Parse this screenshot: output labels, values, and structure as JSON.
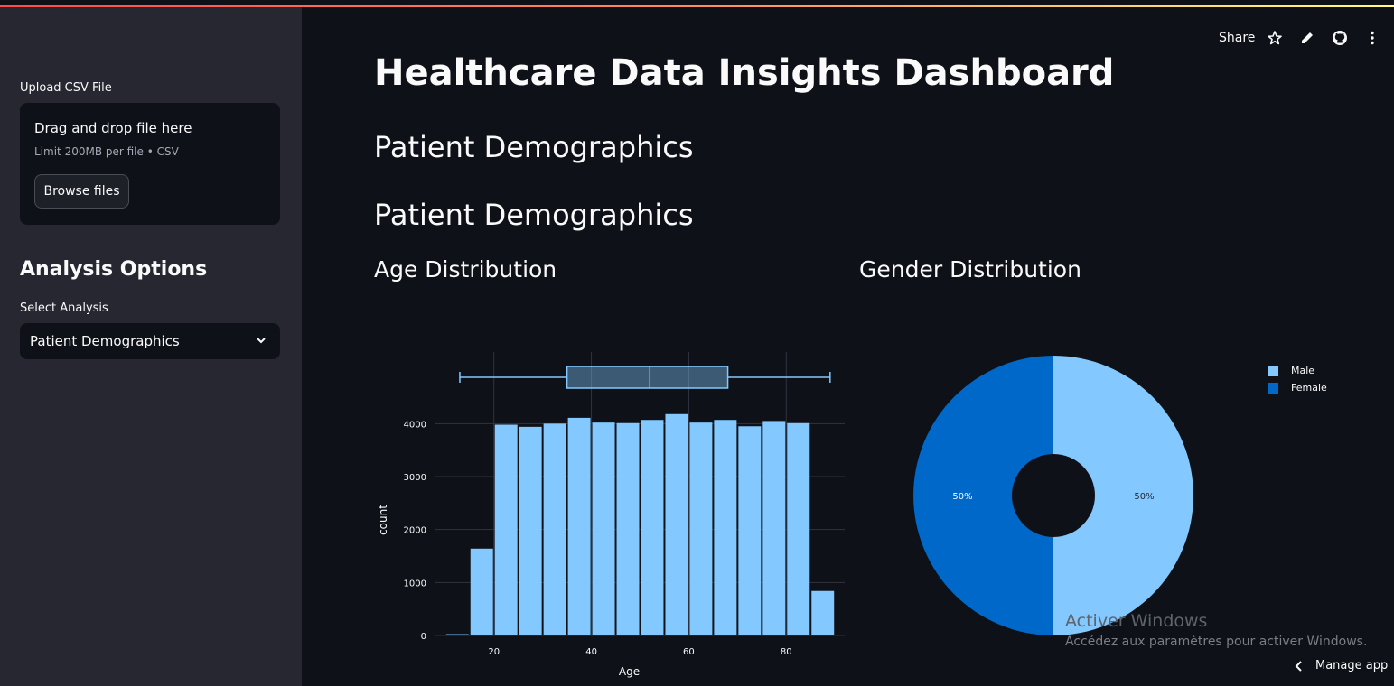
{
  "sidebar": {
    "upload_label": "Upload CSV File",
    "dropzone_title": "Drag and drop file here",
    "dropzone_limit": "Limit 200MB per file • CSV",
    "browse_button": "Browse files",
    "section_title": "Analysis Options",
    "select_label": "Select Analysis",
    "select_value": "Patient Demographics"
  },
  "header": {
    "share_label": "Share",
    "icons": [
      "star-icon",
      "pencil-icon",
      "github-icon",
      "more-vertical-icon"
    ]
  },
  "main": {
    "title": "Healthcare Data Insights Dashboard",
    "subheader_1": "Patient Demographics",
    "subheader_2": "Patient Demographics",
    "age_chart_title": "Age Distribution",
    "gender_chart_title": "Gender Distribution"
  },
  "footer": {
    "watermark_title": "Activer Windows",
    "watermark_sub": "Accédez aux paramètres pour activer Windows.",
    "manage_app": "Manage app"
  },
  "colors": {
    "accent_light": "#83c9ff",
    "accent_dark": "#0068c9",
    "background": "#0e1117",
    "sidebar": "#262730"
  },
  "chart_data": [
    {
      "type": "bar",
      "xlabel": "Age",
      "ylabel": "count",
      "bin_starts": [
        10,
        15,
        20,
        25,
        30,
        35,
        40,
        45,
        50,
        55,
        60,
        65,
        70,
        75,
        80,
        85
      ],
      "bin_width": 5,
      "values": [
        25,
        1640,
        3980,
        3940,
        4000,
        4110,
        4020,
        4010,
        4070,
        4180,
        4020,
        4070,
        3950,
        4050,
        4010,
        840
      ],
      "xlim": [
        8,
        92
      ],
      "ylim": [
        0,
        4500
      ],
      "xticks": [
        20,
        40,
        60,
        80
      ],
      "yticks": [
        0,
        1000,
        2000,
        3000,
        4000
      ],
      "boxplot": {
        "min": 13,
        "q1": 35,
        "median": 52,
        "q3": 68,
        "max": 89
      }
    },
    {
      "type": "pie",
      "labels": [
        "Male",
        "Female"
      ],
      "values": [
        50,
        50
      ],
      "text_labels": [
        "50%",
        "50%"
      ],
      "hole": true,
      "legend_position": "top-right"
    }
  ]
}
